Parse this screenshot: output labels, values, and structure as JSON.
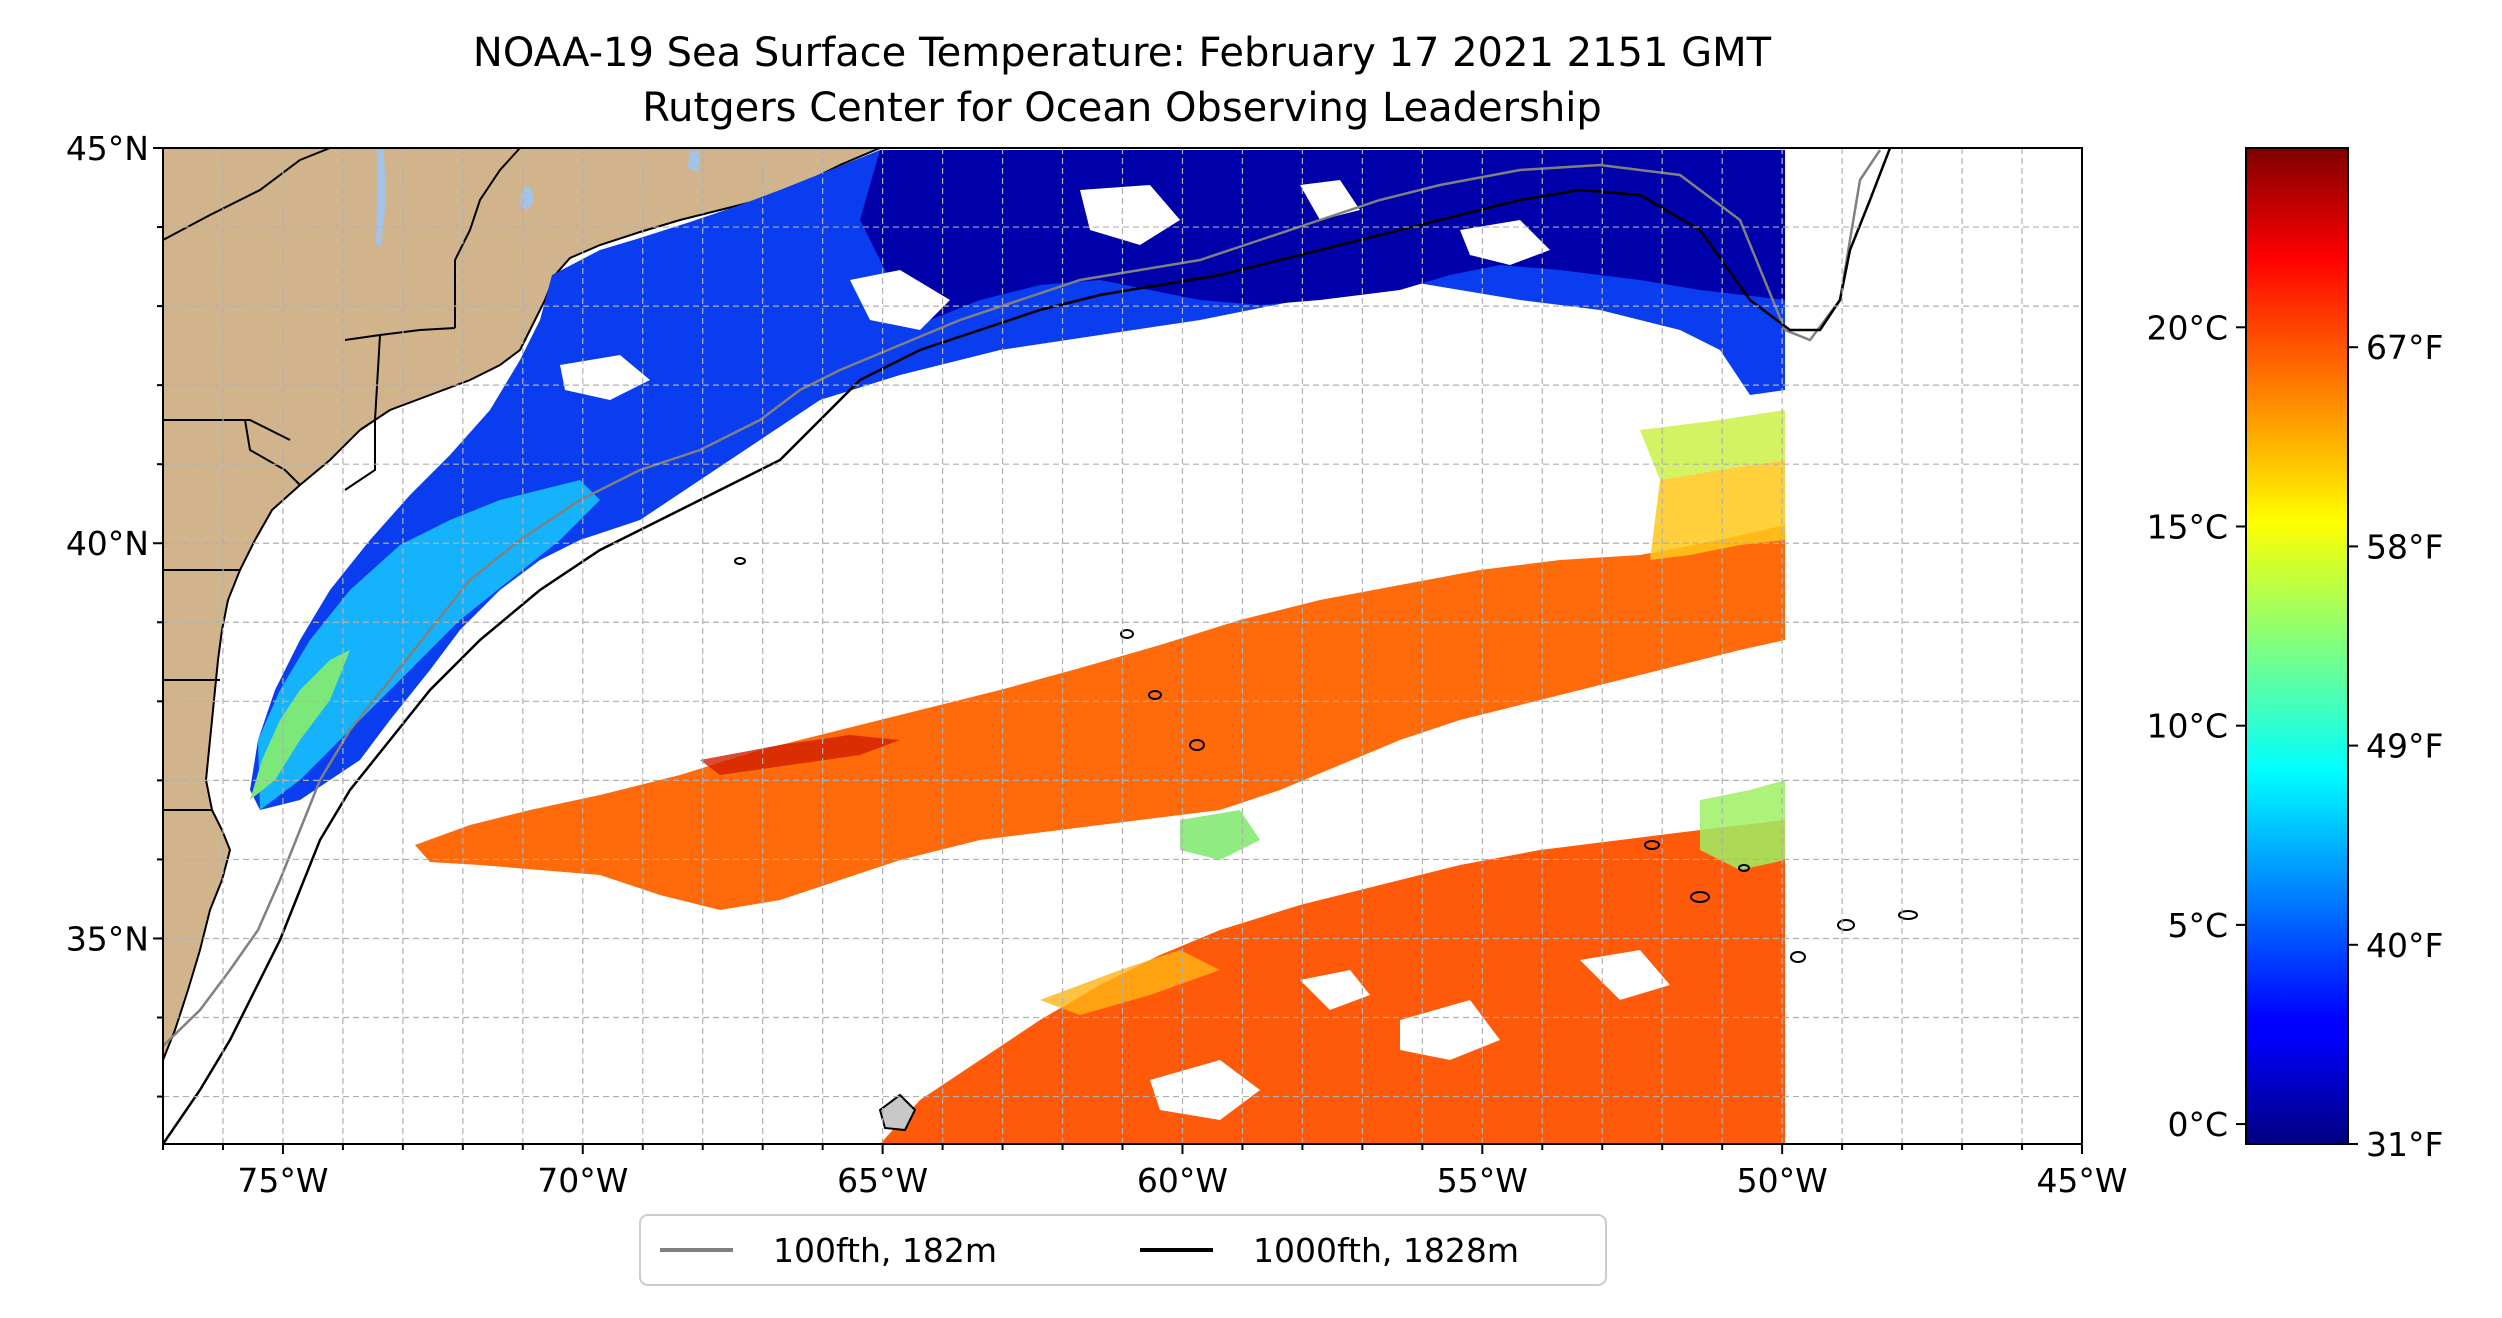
{
  "title": {
    "line1": "NOAA-19 Sea Surface Temperature: February 17 2021 2151 GMT",
    "line2": "Rutgers Center for Ocean Observing Leadership"
  },
  "map": {
    "lon_range": [
      -77,
      -45
    ],
    "lat_range": [
      32.4,
      45
    ],
    "x_ticks": [
      {
        "lon": -75,
        "label": "75°W"
      },
      {
        "lon": -70,
        "label": "70°W"
      },
      {
        "lon": -65,
        "label": "65°W"
      },
      {
        "lon": -60,
        "label": "60°W"
      },
      {
        "lon": -55,
        "label": "55°W"
      },
      {
        "lon": -50,
        "label": "50°W"
      },
      {
        "lon": -45,
        "label": "45°W"
      }
    ],
    "y_ticks": [
      {
        "lat": 45,
        "label": "45°N"
      },
      {
        "lat": 40,
        "label": "40°N"
      },
      {
        "lat": 35,
        "label": "35°N"
      }
    ],
    "gridlines": "dashed, every 1°",
    "colors": {
      "land": "#d2b48c",
      "lakes": "#a3c4e8",
      "isobath_100fth": "#808080",
      "isobath_1000fth": "#000000",
      "state_borders": "#000000"
    }
  },
  "legend": {
    "placement": "below map",
    "items": [
      {
        "label": "100fth, 182m",
        "color": "#808080"
      },
      {
        "label": "1000fth, 1828m",
        "color": "#000000"
      }
    ]
  },
  "colorbar": {
    "colormap": "jet",
    "range_c": [
      -0.5,
      24.5
    ],
    "celsius_ticks": [
      {
        "value": 0,
        "label": "0°C"
      },
      {
        "value": 5,
        "label": "5°C"
      },
      {
        "value": 10,
        "label": "10°C"
      },
      {
        "value": 15,
        "label": "15°C"
      },
      {
        "value": 20,
        "label": "20°C"
      }
    ],
    "fahrenheit_ticks": [
      {
        "value_c": -0.5,
        "label": "31°F"
      },
      {
        "value_c": 4.5,
        "label": "40°F"
      },
      {
        "value_c": 9.5,
        "label": "49°F"
      },
      {
        "value_c": 14.5,
        "label": "58°F"
      },
      {
        "value_c": 19.5,
        "label": "67°F"
      }
    ]
  }
}
